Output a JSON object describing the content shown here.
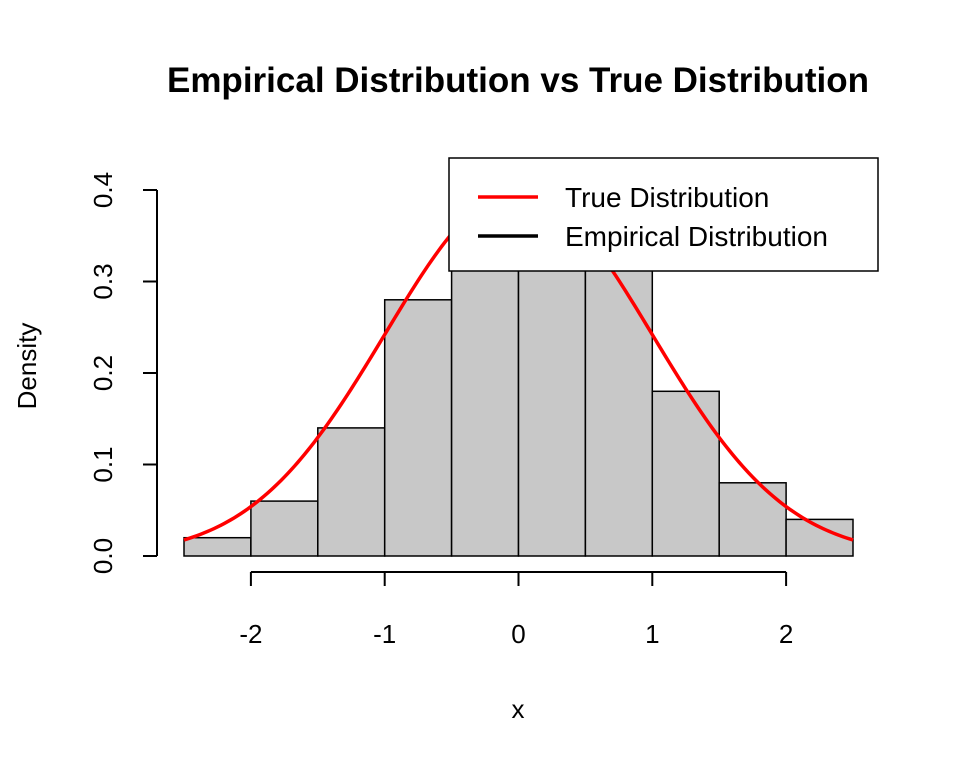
{
  "chart_data": {
    "type": "bar",
    "title": "Empirical Distribution vs True Distribution",
    "xlabel": "x",
    "ylabel": "Density",
    "xlim": [
      -2.5,
      2.5
    ],
    "ylim": [
      0,
      0.4
    ],
    "x_ticks": [
      -2,
      -1,
      0,
      1,
      2
    ],
    "x_tick_labels": [
      "-2",
      "-1",
      "0",
      "1",
      "2"
    ],
    "y_ticks": [
      0,
      0.1,
      0.2,
      0.3,
      0.4
    ],
    "y_tick_labels": [
      "0.0",
      "0.1",
      "0.2",
      "0.3",
      "0.4"
    ],
    "bin_edges": [
      -2.5,
      -2.0,
      -1.5,
      -1.0,
      -0.5,
      0.0,
      0.5,
      1.0,
      1.5,
      2.0,
      2.5
    ],
    "bar_values": [
      0.02,
      0.06,
      0.14,
      0.28,
      0.36,
      0.36,
      0.32,
      0.18,
      0.08,
      0.04
    ],
    "bar_color": "#c8c8c8",
    "curve": {
      "name": "True Distribution",
      "color": "#ff0000",
      "distribution": "normal",
      "mean": 0,
      "sd": 1
    },
    "legend": {
      "placement": "top-right",
      "entries": [
        {
          "label": "True Distribution",
          "color": "#ff0000"
        },
        {
          "label": "Empirical Distribution",
          "color": "#000000"
        }
      ]
    },
    "grid": false
  }
}
